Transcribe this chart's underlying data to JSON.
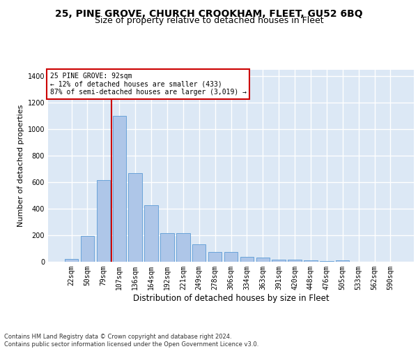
{
  "title1": "25, PINE GROVE, CHURCH CROOKHAM, FLEET, GU52 6BQ",
  "title2": "Size of property relative to detached houses in Fleet",
  "xlabel": "Distribution of detached houses by size in Fleet",
  "ylabel": "Number of detached properties",
  "bar_labels": [
    "22sqm",
    "50sqm",
    "79sqm",
    "107sqm",
    "136sqm",
    "164sqm",
    "192sqm",
    "221sqm",
    "249sqm",
    "278sqm",
    "306sqm",
    "334sqm",
    "363sqm",
    "391sqm",
    "420sqm",
    "448sqm",
    "476sqm",
    "505sqm",
    "533sqm",
    "562sqm",
    "590sqm"
  ],
  "bar_values": [
    20,
    193,
    617,
    1103,
    670,
    428,
    215,
    215,
    130,
    73,
    73,
    37,
    30,
    17,
    17,
    10,
    5,
    10,
    0,
    0,
    0
  ],
  "bar_color": "#aec6e8",
  "bar_edge_color": "#5b9bd5",
  "background_color": "#dce8f5",
  "grid_color": "#ffffff",
  "vline_color": "#cc0000",
  "vline_x": 2.5,
  "ylim": [
    0,
    1450
  ],
  "yticks": [
    0,
    200,
    400,
    600,
    800,
    1000,
    1200,
    1400
  ],
  "annotation_text": "25 PINE GROVE: 92sqm\n← 12% of detached houses are smaller (433)\n87% of semi-detached houses are larger (3,019) →",
  "footnote": "Contains HM Land Registry data © Crown copyright and database right 2024.\nContains public sector information licensed under the Open Government Licence v3.0.",
  "annotation_box_color": "#cc0000",
  "title1_fontsize": 10,
  "title2_fontsize": 9,
  "tick_fontsize": 7,
  "ylabel_fontsize": 8,
  "xlabel_fontsize": 8.5,
  "annotation_fontsize": 7,
  "footnote_fontsize": 6
}
